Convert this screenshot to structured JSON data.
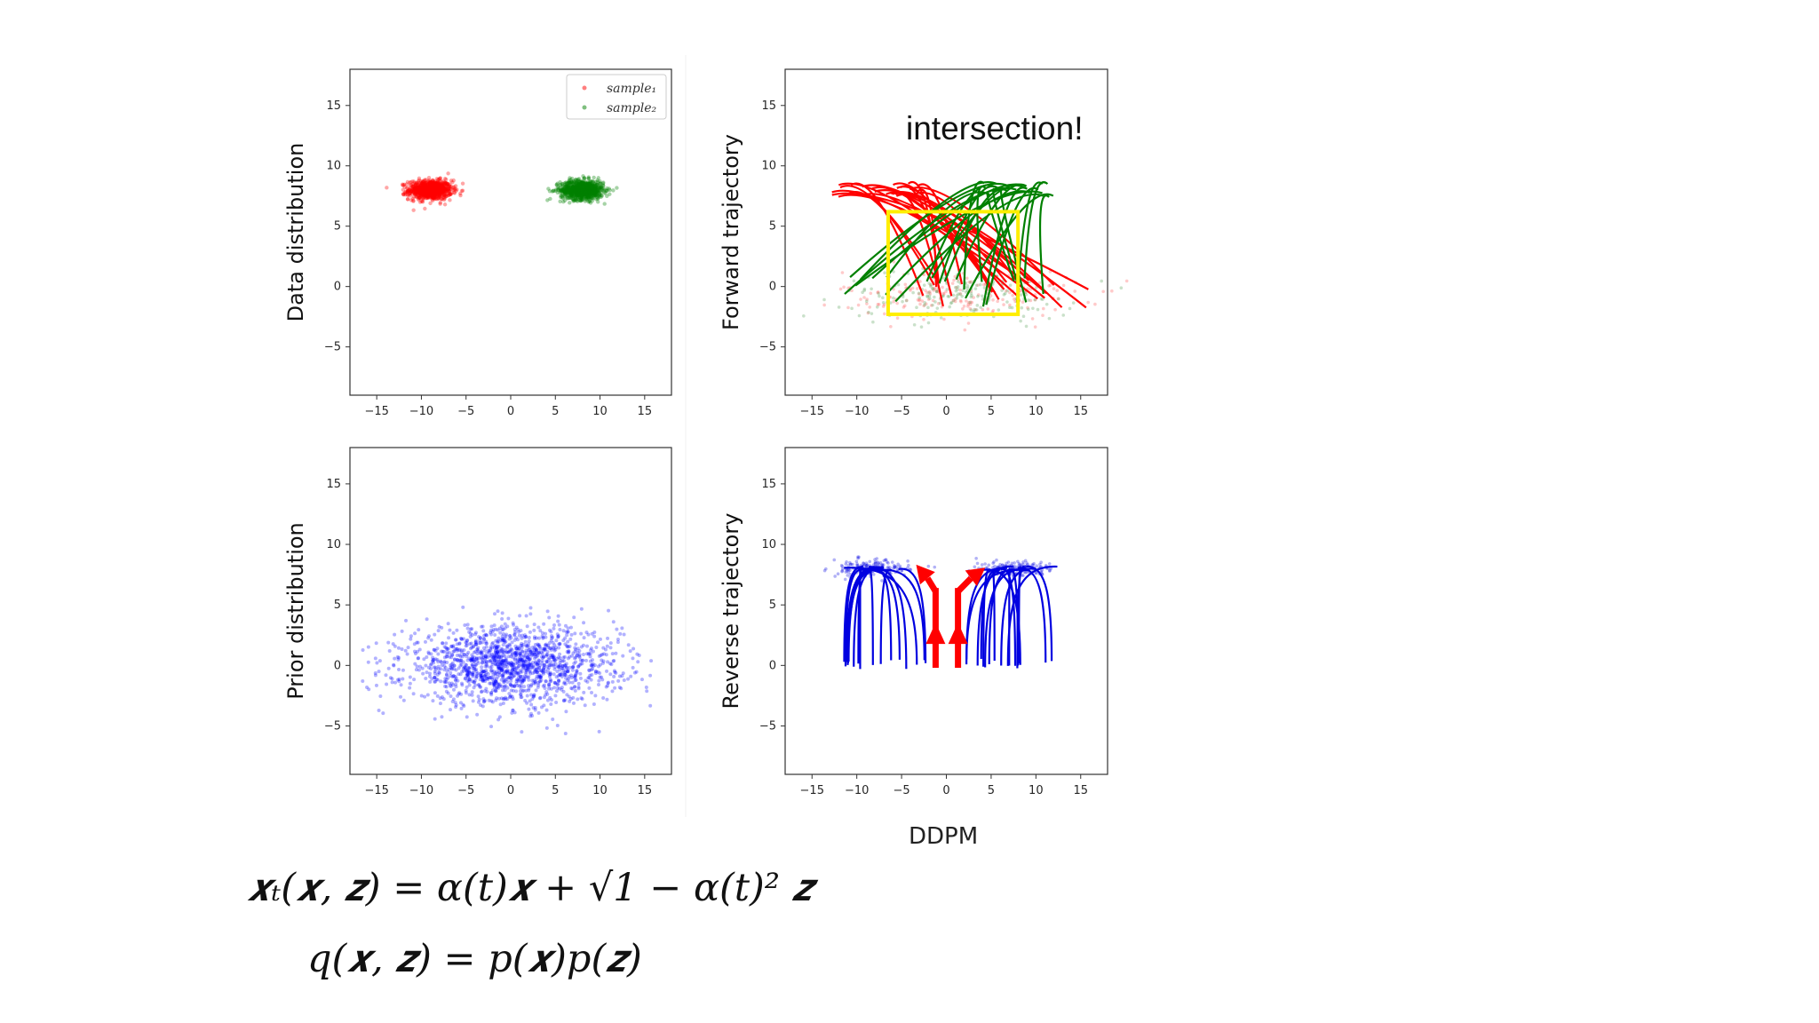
{
  "caption": "DDPM",
  "annotation": "intersection!",
  "equations": {
    "line1": "𝒙ₜ(𝒙, 𝒛) = α(t)𝒙 + √1 − α(t)² 𝒛",
    "line2": "q(𝒙, 𝒛) = p(𝒙)p(𝒛)"
  },
  "colors": {
    "sample1": "#ff0000",
    "sample2": "#008000",
    "prior": "#0000ff",
    "reverse": "#0000e0",
    "highlight_box": "#ffee00",
    "arrow": "#ff0000"
  },
  "chart_data": [
    {
      "type": "scatter",
      "id": "data",
      "ylabel": "Data distribution",
      "xlim": [
        -18,
        18
      ],
      "ylim": [
        -9,
        18
      ],
      "xticks": [
        -15,
        -10,
        -5,
        0,
        5,
        10,
        15
      ],
      "yticks": [
        -5,
        0,
        5,
        10,
        15
      ],
      "tick_labels_x": [
        "−15",
        "−10",
        "−5",
        "0",
        "5",
        "10",
        "15"
      ],
      "tick_labels_y": [
        "−5",
        "0",
        "5",
        "10",
        "15"
      ],
      "legend": {
        "placement": "top-right",
        "entries": [
          "sample₁",
          "sample₂"
        ]
      },
      "series": [
        {
          "name": "sample₁",
          "color": "#ff0000",
          "center": [
            -9,
            8
          ],
          "spread": [
            2.2,
            0.5
          ]
        },
        {
          "name": "sample₂",
          "color": "#008000",
          "center": [
            8,
            8
          ],
          "spread": [
            2.2,
            0.5
          ]
        }
      ]
    },
    {
      "type": "line",
      "id": "forward",
      "ylabel": "Forward trajectory",
      "xlim": [
        -18,
        18
      ],
      "ylim": [
        -9,
        18
      ],
      "xticks": [
        -15,
        -10,
        -5,
        0,
        5,
        10,
        15
      ],
      "yticks": [
        -5,
        0,
        5,
        10,
        15
      ],
      "tick_labels_x": [
        "−15",
        "−10",
        "−5",
        "0",
        "5",
        "10",
        "15"
      ],
      "tick_labels_y": [
        "−5",
        "0",
        "5",
        "10",
        "15"
      ],
      "highlight_box": {
        "x": [
          -6.5,
          8
        ],
        "y": [
          -2.3,
          6.2
        ]
      },
      "series": [
        {
          "name": "sample₁",
          "color": "#ff0000",
          "start_x": [
            -13,
            -3
          ],
          "start_y": 8,
          "end_x": [
            -4,
            16
          ],
          "end_y": [
            -2,
            1
          ]
        },
        {
          "name": "sample₂",
          "color": "#008000",
          "start_x": [
            4,
            12
          ],
          "start_y": 8,
          "end_x": [
            -14,
            12
          ],
          "end_y": [
            -2,
            1
          ]
        }
      ]
    },
    {
      "type": "scatter",
      "id": "prior",
      "ylabel": "Prior distribution",
      "xlim": [
        -18,
        18
      ],
      "ylim": [
        -9,
        18
      ],
      "xticks": [
        -15,
        -10,
        -5,
        0,
        5,
        10,
        15
      ],
      "yticks": [
        -5,
        0,
        5,
        10,
        15
      ],
      "tick_labels_x": [
        "−15",
        "−10",
        "−5",
        "0",
        "5",
        "10",
        "15"
      ],
      "tick_labels_y": [
        "−5",
        "0",
        "5",
        "10",
        "15"
      ],
      "series": [
        {
          "color": "#0000ff",
          "center": [
            0,
            0
          ],
          "spread": [
            6,
            1.6
          ]
        }
      ]
    },
    {
      "type": "line",
      "id": "reverse",
      "ylabel": "Reverse trajectory",
      "xlim": [
        -18,
        18
      ],
      "ylim": [
        -9,
        18
      ],
      "xticks": [
        -15,
        -10,
        -5,
        0,
        5,
        10,
        15
      ],
      "yticks": [
        -5,
        0,
        5,
        10,
        15
      ],
      "tick_labels_x": [
        "−15",
        "−10",
        "−5",
        "0",
        "5",
        "10",
        "15"
      ],
      "tick_labels_y": [
        "−5",
        "0",
        "5",
        "10",
        "15"
      ],
      "series": [
        {
          "color": "#0000e0",
          "end_center_x": -8.5,
          "end_y": 8,
          "start_x": [
            -12,
            -1
          ]
        },
        {
          "color": "#0000e0",
          "end_center_x": 7.5,
          "end_y": 8,
          "start_x": [
            2,
            13
          ]
        }
      ],
      "arrows": [
        {
          "x": -1.2,
          "y_from": -0.2,
          "y_to": 6.4,
          "head_to": [
            -3,
            8
          ]
        },
        {
          "x": 1.3,
          "y_from": -0.2,
          "y_to": 6.4,
          "head_to": [
            4.2,
            8
          ]
        }
      ]
    }
  ]
}
